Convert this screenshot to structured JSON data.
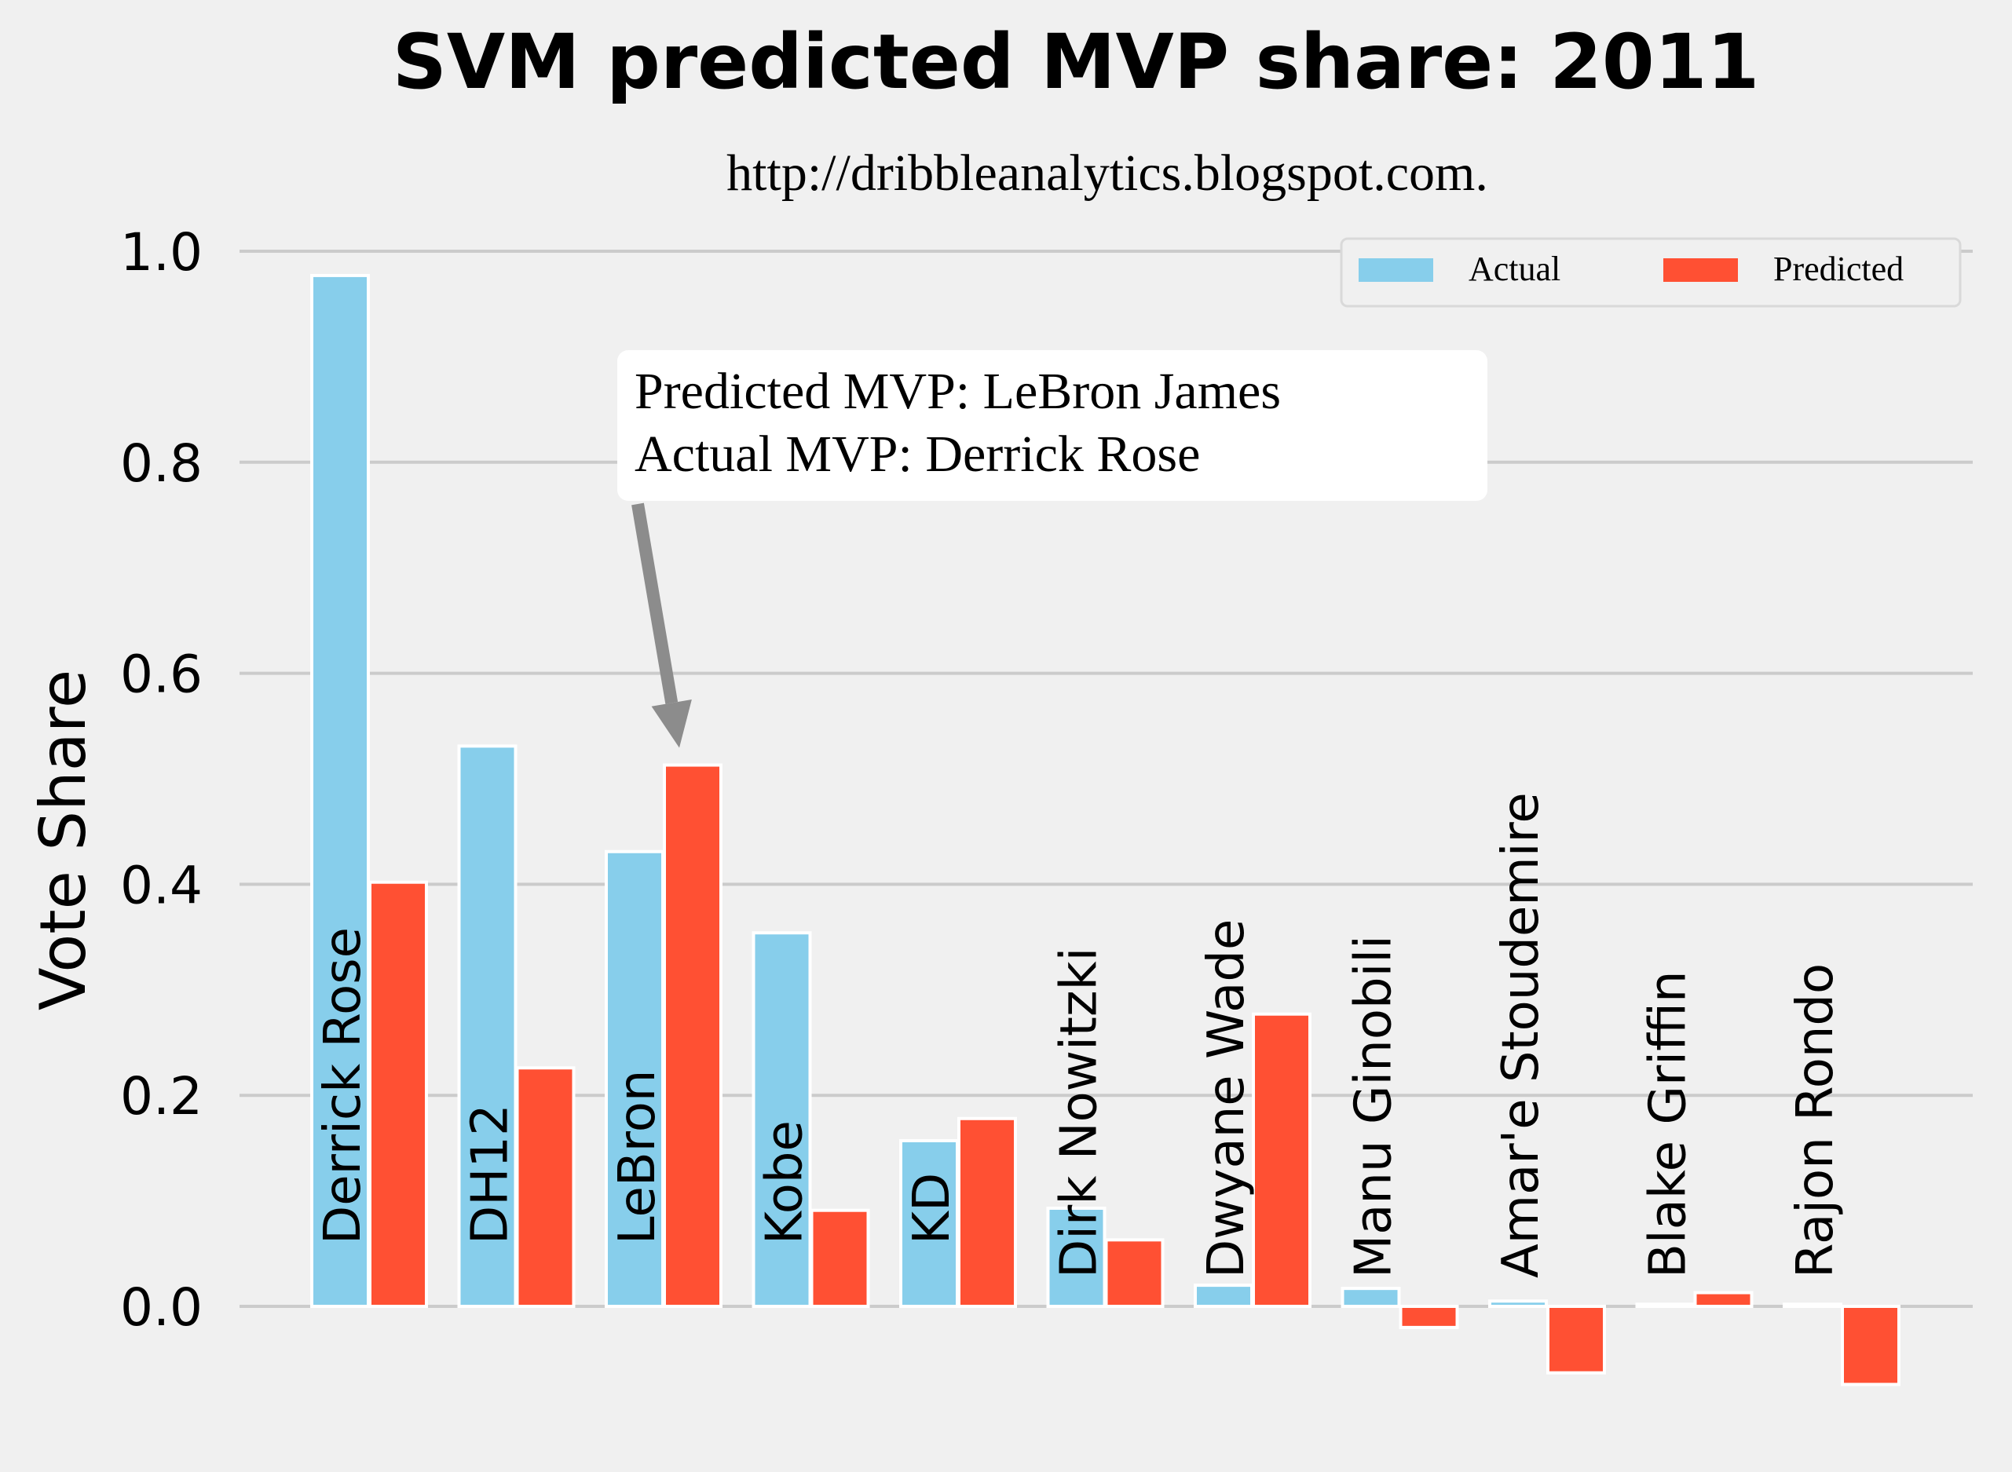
{
  "chart_data": {
    "type": "bar",
    "title": "SVM predicted MVP share: 2011",
    "subtitle": "http://dribbleanalytics.blogspot.com.",
    "xlabel": "",
    "ylabel": "Vote Share",
    "ylim": [
      -0.12,
      1.02
    ],
    "yticks": [
      "0.0",
      "0.2",
      "0.4",
      "0.6",
      "0.8",
      "1.0"
    ],
    "grid": true,
    "legend_position": "top-right",
    "categories": [
      "Derrick Rose",
      "DH12",
      "LeBron",
      "Kobe",
      "KD",
      "Dirk Nowitzki",
      "Dwyane Wade",
      "Manu Ginobili",
      "Amar'e Stoudemire",
      "Blake Griffin",
      "Rajon Rondo"
    ],
    "series": [
      {
        "name": "Actual",
        "color": "#87ceeb",
        "values": [
          0.977,
          0.531,
          0.431,
          0.354,
          0.157,
          0.093,
          0.02,
          0.017,
          0.005,
          0.002,
          0.002
        ]
      },
      {
        "name": "Predicted",
        "color": "#ff5033",
        "values": [
          0.402,
          0.226,
          0.513,
          0.091,
          0.178,
          0.063,
          0.277,
          -0.02,
          -0.063,
          0.013,
          -0.074
        ]
      }
    ],
    "annotation": {
      "lines": [
        "Predicted MVP: LeBron James",
        "Actual MVP: Derrick Rose"
      ],
      "target_category": "LeBron",
      "target_value": 0.513
    }
  }
}
